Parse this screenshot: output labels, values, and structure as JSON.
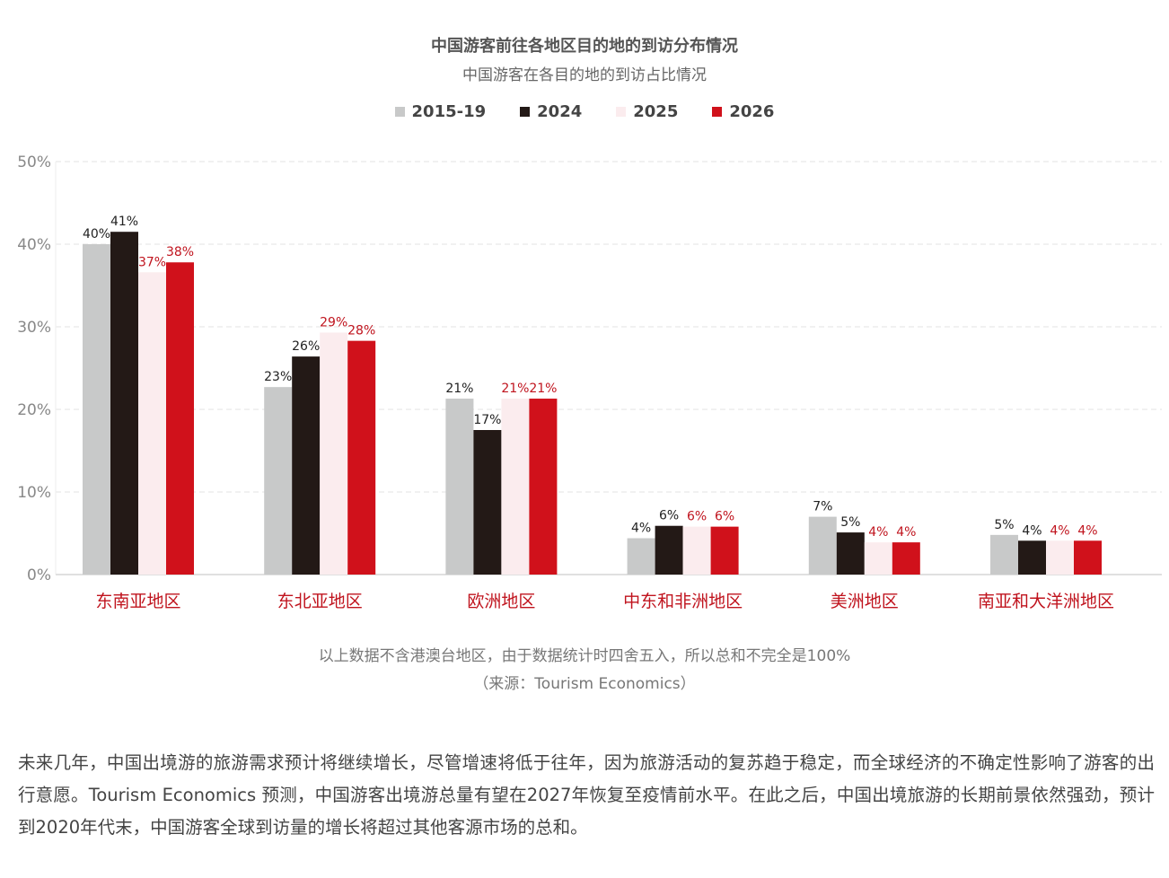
{
  "chart_data": {
    "type": "bar",
    "title": "中国游客前往各地区目的地的到访分布情况",
    "subtitle": "中国游客在各目的地的到访占比情况",
    "categories": [
      "东南亚地区",
      "东北亚地区",
      "欧洲地区",
      "中东和非洲地区",
      "美洲地区",
      "南亚和大洋洲地区"
    ],
    "series": [
      {
        "name": "2015-19",
        "color": "#c8c9c9",
        "label_color": "#222222",
        "values": [
          40,
          23,
          21,
          4,
          7,
          5
        ],
        "plot_values": [
          40,
          22.7,
          21.3,
          4.4,
          7,
          4.8
        ]
      },
      {
        "name": "2024",
        "color": "#231916",
        "label_color": "#222222",
        "values": [
          41,
          26,
          17,
          6,
          5,
          4
        ],
        "plot_values": [
          41.5,
          26.4,
          17.5,
          5.9,
          5.1,
          4.1
        ]
      },
      {
        "name": "2025",
        "color": "#fbecee",
        "label_color": "#c0141e",
        "values": [
          37,
          29,
          21,
          6,
          4,
          4
        ],
        "plot_values": [
          36.6,
          29.3,
          21.3,
          5.8,
          3.9,
          4.1
        ]
      },
      {
        "name": "2026",
        "color": "#d0111b",
        "label_color": "#c0141e",
        "values": [
          38,
          28,
          21,
          6,
          4,
          4
        ],
        "plot_values": [
          37.8,
          28.3,
          21.3,
          5.8,
          3.9,
          4.1
        ]
      }
    ],
    "value_suffix": "%",
    "ylim": [
      0,
      50
    ],
    "yticks": [
      0,
      10,
      20,
      30,
      40,
      50
    ],
    "ytick_labels": [
      "0%",
      "10%",
      "20%",
      "30%",
      "40%",
      "50%"
    ],
    "grid": true,
    "legend_position": "top-center",
    "category_label_color": "#c0141e"
  },
  "note_line1": "以上数据不含港澳台地区，由于数据统计时四舍五入，所以总和不完全是100%",
  "note_line2": "（来源：Tourism Economics）",
  "paragraph": "未来几年，中国出境游的旅游需求预计将继续增长，尽管增速将低于往年，因为旅游活动的复苏趋于稳定，而全球经济的不确定性影响了游客的出行意愿。Tourism Economics 预测，中国游客出境游总量有望在2027年恢复至疫情前水平。在此之后，中国出境旅游的长期前景依然强劲，预计到2020年代末，中国游客全球到访量的增长将超过其他客源市场的总和。"
}
